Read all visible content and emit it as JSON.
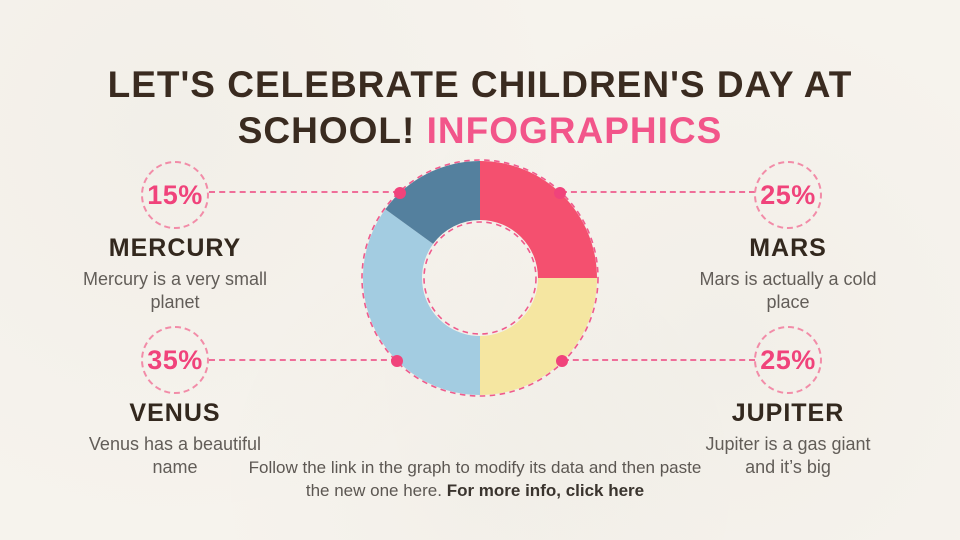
{
  "title": {
    "line1": "LET'S CELEBRATE CHILDREN'S DAY AT",
    "line2_dark": "SCHOOL!",
    "line2_accent": "INFOGRAPHICS"
  },
  "cards": [
    {
      "id": "mercury",
      "percent": "15%",
      "name": "MERCURY",
      "desc": "Mercury is a very small planet"
    },
    {
      "id": "mars",
      "percent": "25%",
      "name": "MARS",
      "desc": "Mars is actually a cold place"
    },
    {
      "id": "venus",
      "percent": "35%",
      "name": "VENUS",
      "desc": "Venus has a beautiful name"
    },
    {
      "id": "jupiter",
      "percent": "25%",
      "name": "JUPITER",
      "desc": "Jupiter is a gas giant and it’s big"
    }
  ],
  "footer": {
    "text": "Follow the link in the graph to modify its data and then paste the new one here. ",
    "link": "For more info, click here"
  },
  "colors": {
    "background": "#F6F3ED",
    "title_dark": "#3A2B20",
    "accent_pink": "#F2558A",
    "badge_pink": "#F0437B",
    "dash_pink": "#EF6E99",
    "body_gray": "#625D58"
  },
  "chart_data": {
    "type": "pie",
    "subtype": "donut",
    "title": "Let's celebrate Children's Day at school! Infographics",
    "start_angle_deg": 0,
    "direction": "clockwise",
    "inner_radius_ratio": 0.5,
    "legend_position": "none",
    "segments": [
      {
        "label": "Mars",
        "value": 25,
        "color": "#F4506F"
      },
      {
        "label": "Jupiter",
        "value": 25,
        "color": "#F5E6A1"
      },
      {
        "label": "Venus",
        "value": 35,
        "color": "#A3CCE1"
      },
      {
        "label": "Mercury",
        "value": 15,
        "color": "#54809E"
      }
    ]
  }
}
